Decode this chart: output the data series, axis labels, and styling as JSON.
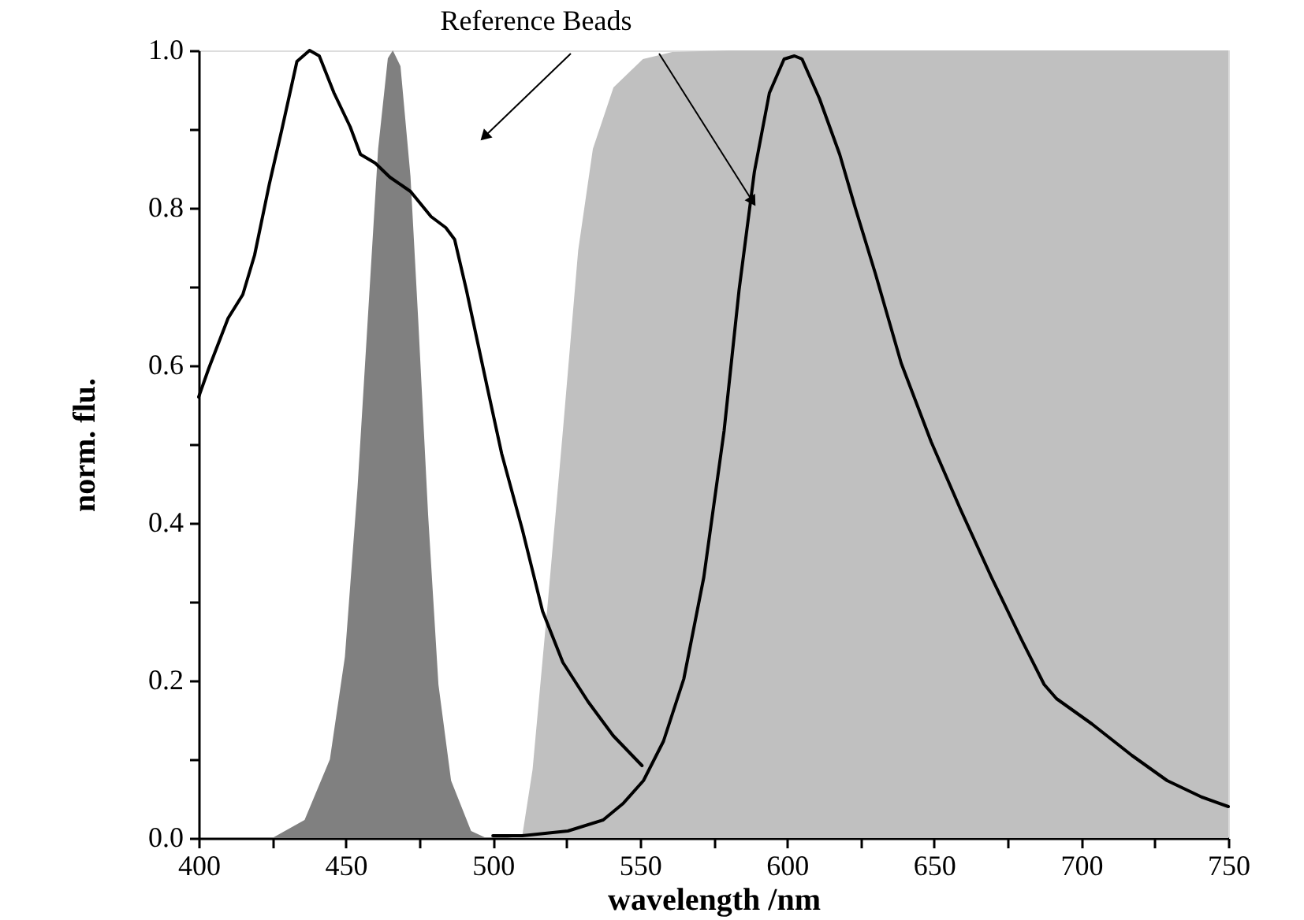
{
  "chart_data": {
    "type": "line",
    "xlabel": "wavelength /nm",
    "ylabel": "norm. flu.",
    "annotations": [
      {
        "text": "Reference Beads",
        "x": 588,
        "y": 0.81
      }
    ],
    "xlim": [
      400,
      750
    ],
    "ylim": [
      0,
      1
    ],
    "xticks": [
      400,
      {
        "value": 425,
        "label": null
      },
      450,
      {
        "value": 475,
        "label": null
      },
      500,
      {
        "value": 525,
        "label": null
      },
      550,
      {
        "value": 575,
        "label": null
      },
      600,
      {
        "value": 625,
        "label": null
      },
      650,
      {
        "value": 675,
        "label": null
      },
      700,
      {
        "value": 725,
        "label": null
      },
      750
    ],
    "yticks": [
      {
        "value": 0,
        "label": "0.0"
      },
      {
        "value": 0.1,
        "label": null
      },
      {
        "value": 0.2,
        "label": "0.2"
      },
      {
        "value": 0.3,
        "label": null
      },
      {
        "value": 0.4,
        "label": "0.4"
      },
      {
        "value": 0.5,
        "label": null
      },
      {
        "value": 0.6,
        "label": "0.6"
      },
      {
        "value": 0.7,
        "label": null
      },
      {
        "value": 0.8,
        "label": "0.8"
      },
      {
        "value": 0.9,
        "label": null
      },
      {
        "value": 1,
        "label": "1.0"
      }
    ],
    "series": [
      {
        "type": "area",
        "color": "#c0c0c0",
        "x": [
          505,
          510,
          513.5,
          518.7,
          523.8,
          529,
          534,
          541,
          551,
          561,
          580,
          620,
          700,
          750
        ],
        "values": [
          0,
          0.003,
          0.087,
          0.3,
          0.517,
          0.746,
          0.875,
          0.953,
          0.989,
          0.998,
          1.0,
          1.0,
          1.0,
          1.0
        ]
      },
      {
        "type": "area",
        "color": "#808080",
        "x": [
          425,
          436,
          444.6,
          449.7,
          454,
          457.5,
          461,
          464.3,
          466,
          468.6,
          472,
          474.6,
          478,
          481.5,
          485.8,
          492.6,
          497.8
        ],
        "values": [
          0,
          0.023,
          0.1,
          0.23,
          0.445,
          0.66,
          0.875,
          0.99,
          1.0,
          0.98,
          0.84,
          0.66,
          0.41,
          0.195,
          0.073,
          0.009,
          0
        ]
      },
      {
        "color": "#000000",
        "x": [
          400,
          403.4,
          410,
          415,
          419,
          424,
          428.3,
          433.4,
          437.7,
          441,
          446,
          451.5,
          455,
          460,
          465,
          472,
          479,
          484,
          487,
          491,
          498,
          503,
          510,
          516.9,
          523.8,
          532.4,
          540.9,
          550.7
        ],
        "values": [
          0.56,
          0.596,
          0.66,
          0.69,
          0.74,
          0.83,
          0.9,
          0.986,
          1.0,
          0.993,
          0.946,
          0.903,
          0.868,
          0.857,
          0.839,
          0.821,
          0.789,
          0.775,
          0.76,
          0.696,
          0.574,
          0.488,
          0.392,
          0.288,
          0.223,
          0.173,
          0.13,
          0.092
        ]
      },
      {
        "color": "#000000",
        "x": [
          500,
          510,
          525.5,
          537.5,
          544.3,
          551.2,
          558,
          564.9,
          571.7,
          578.6,
          583.7,
          588.9,
          594,
          599,
          602.5,
          605.1,
          611,
          617.9,
          623.2,
          630,
          638.8,
          649,
          659,
          669.5,
          679.7,
          687.4,
          691.6,
          703.6,
          717.2,
          729.2,
          741,
          750
        ],
        "values": [
          0.003,
          0.003,
          0.009,
          0.023,
          0.044,
          0.073,
          0.123,
          0.202,
          0.331,
          0.517,
          0.696,
          0.846,
          0.946,
          0.989,
          0.993,
          0.989,
          0.939,
          0.868,
          0.8,
          0.717,
          0.603,
          0.503,
          0.417,
          0.331,
          0.252,
          0.195,
          0.177,
          0.145,
          0.105,
          0.073,
          0.052,
          0.04
        ]
      }
    ]
  }
}
